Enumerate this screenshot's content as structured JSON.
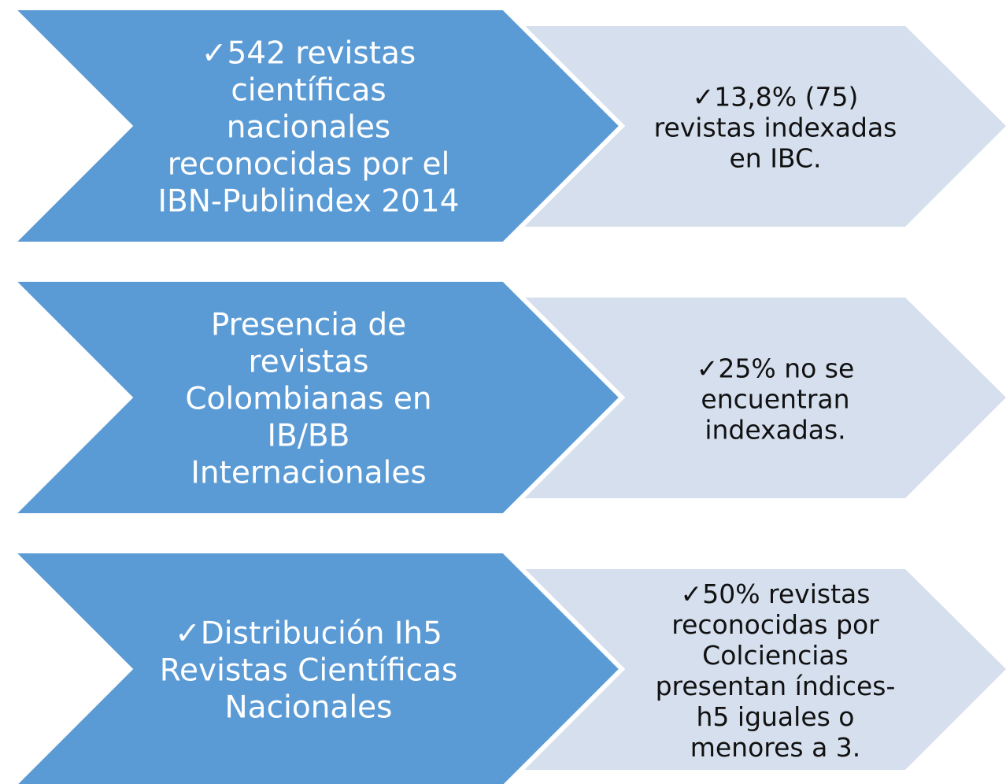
{
  "rows": [
    {
      "left": [
        "✓542 revistas",
        "científicas",
        "nacionales",
        "reconocidas por el",
        "IBN-Publindex 2014"
      ],
      "right": [
        "✓13,8% (75)",
        "revistas indexadas",
        "en IBC."
      ]
    },
    {
      "left": [
        "Presencia de",
        "revistas",
        "Colombianas en",
        "IB/BB",
        "Internacionales"
      ],
      "right": [
        "✓25% no se",
        "encuentran",
        "indexadas."
      ]
    },
    {
      "left": [
        "✓Distribución Ih5",
        "Revistas Científicas",
        "Nacionales"
      ],
      "right": [
        "✓50% revistas",
        "reconocidas por",
        "Colciencias",
        "presentan índices-",
        "h5 iguales o",
        "menores a 3."
      ]
    }
  ]
}
